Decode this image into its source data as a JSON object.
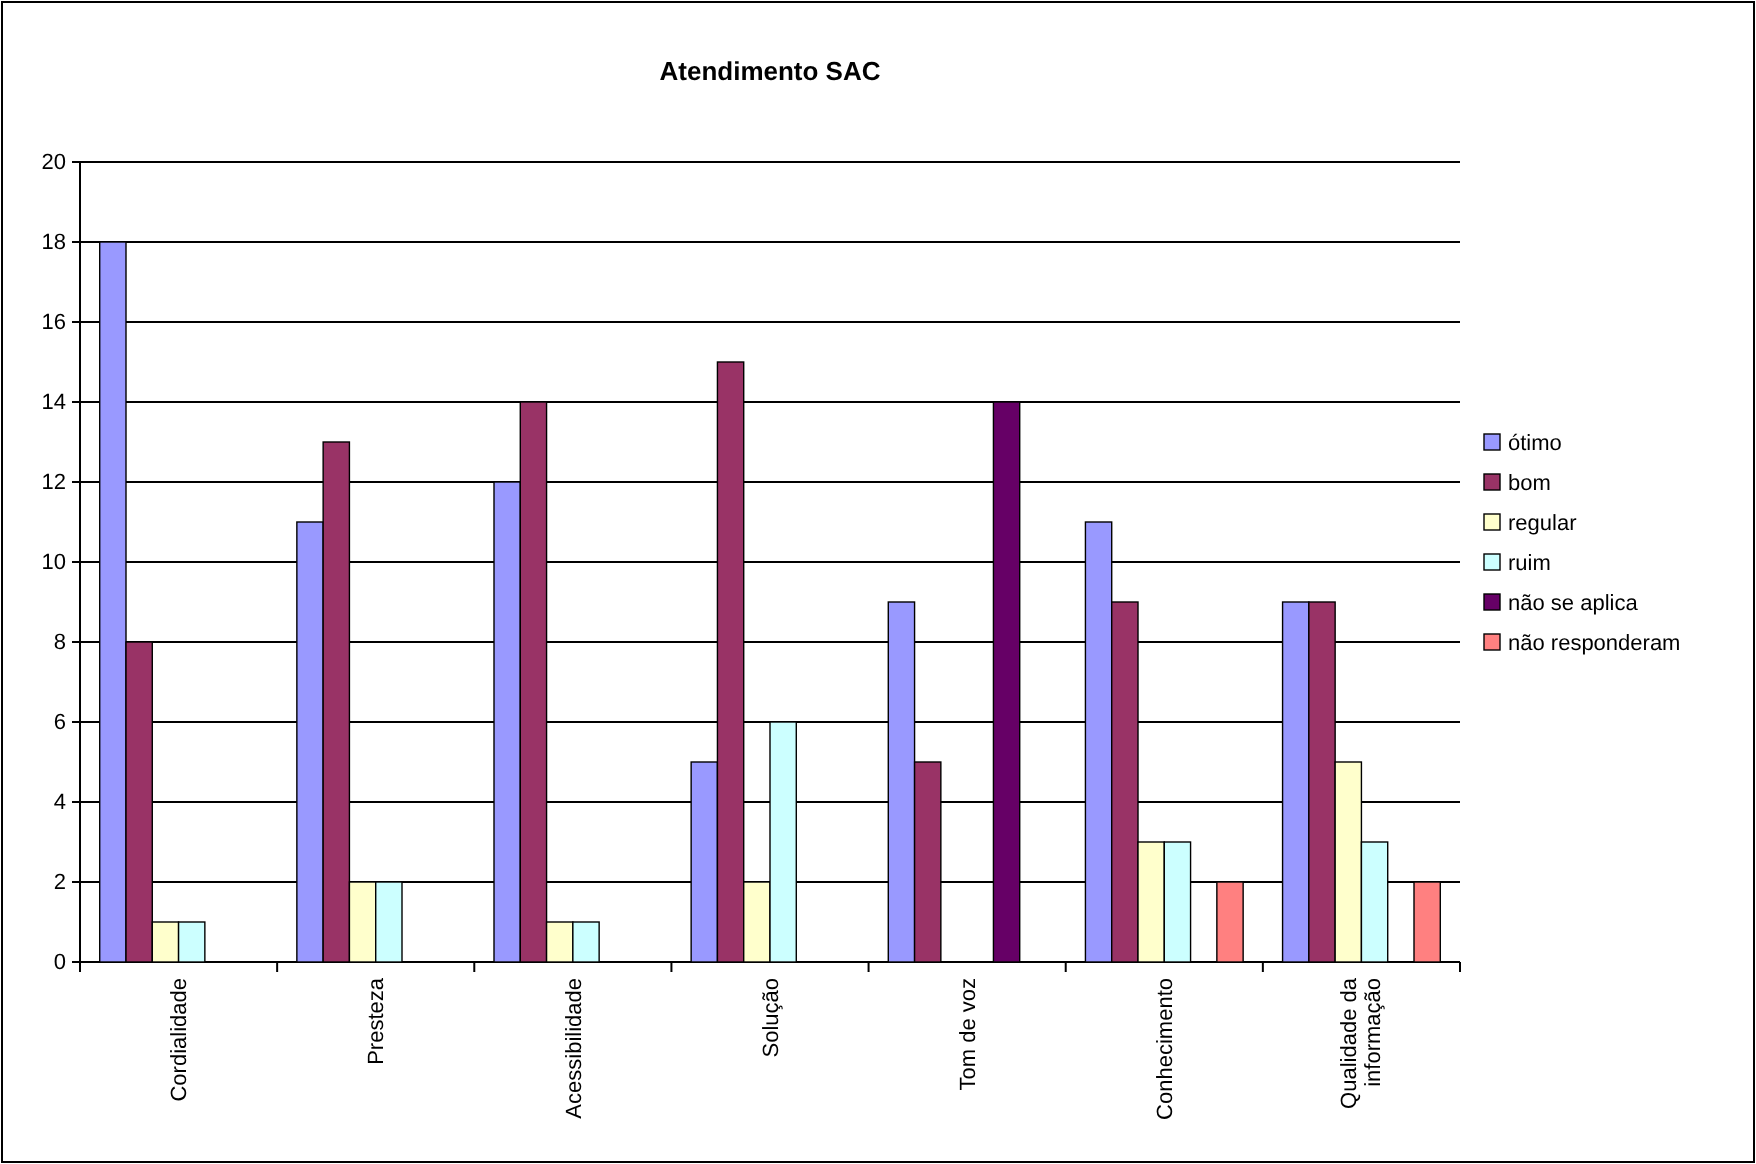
{
  "chart_data": {
    "type": "bar",
    "title": "Atendimento SAC",
    "categories": [
      "Cordialidade",
      "Presteza",
      "Acessibilidade",
      "Solução",
      "Tom de voz",
      "Conhecimento",
      "Qualidade da informação"
    ],
    "series": [
      {
        "name": "ótimo",
        "color": "#9999ff",
        "values": [
          18,
          11,
          12,
          5,
          9,
          11,
          9
        ]
      },
      {
        "name": "bom",
        "color": "#993366",
        "values": [
          8,
          13,
          14,
          15,
          5,
          9,
          9
        ]
      },
      {
        "name": "regular",
        "color": "#ffffcc",
        "values": [
          1,
          2,
          1,
          2,
          null,
          3,
          5
        ]
      },
      {
        "name": "ruim",
        "color": "#ccffff",
        "values": [
          1,
          2,
          1,
          6,
          null,
          3,
          3
        ]
      },
      {
        "name": "não se aplica",
        "color": "#660066",
        "values": [
          null,
          null,
          null,
          null,
          14,
          null,
          null
        ]
      },
      {
        "name": "não responderam",
        "color": "#ff8080",
        "values": [
          null,
          null,
          null,
          null,
          null,
          2,
          2
        ]
      }
    ],
    "ylim": [
      0,
      20
    ],
    "yticks": [
      0,
      2,
      4,
      6,
      8,
      10,
      12,
      14,
      16,
      18,
      20
    ],
    "grid": "y",
    "legend": "right"
  }
}
